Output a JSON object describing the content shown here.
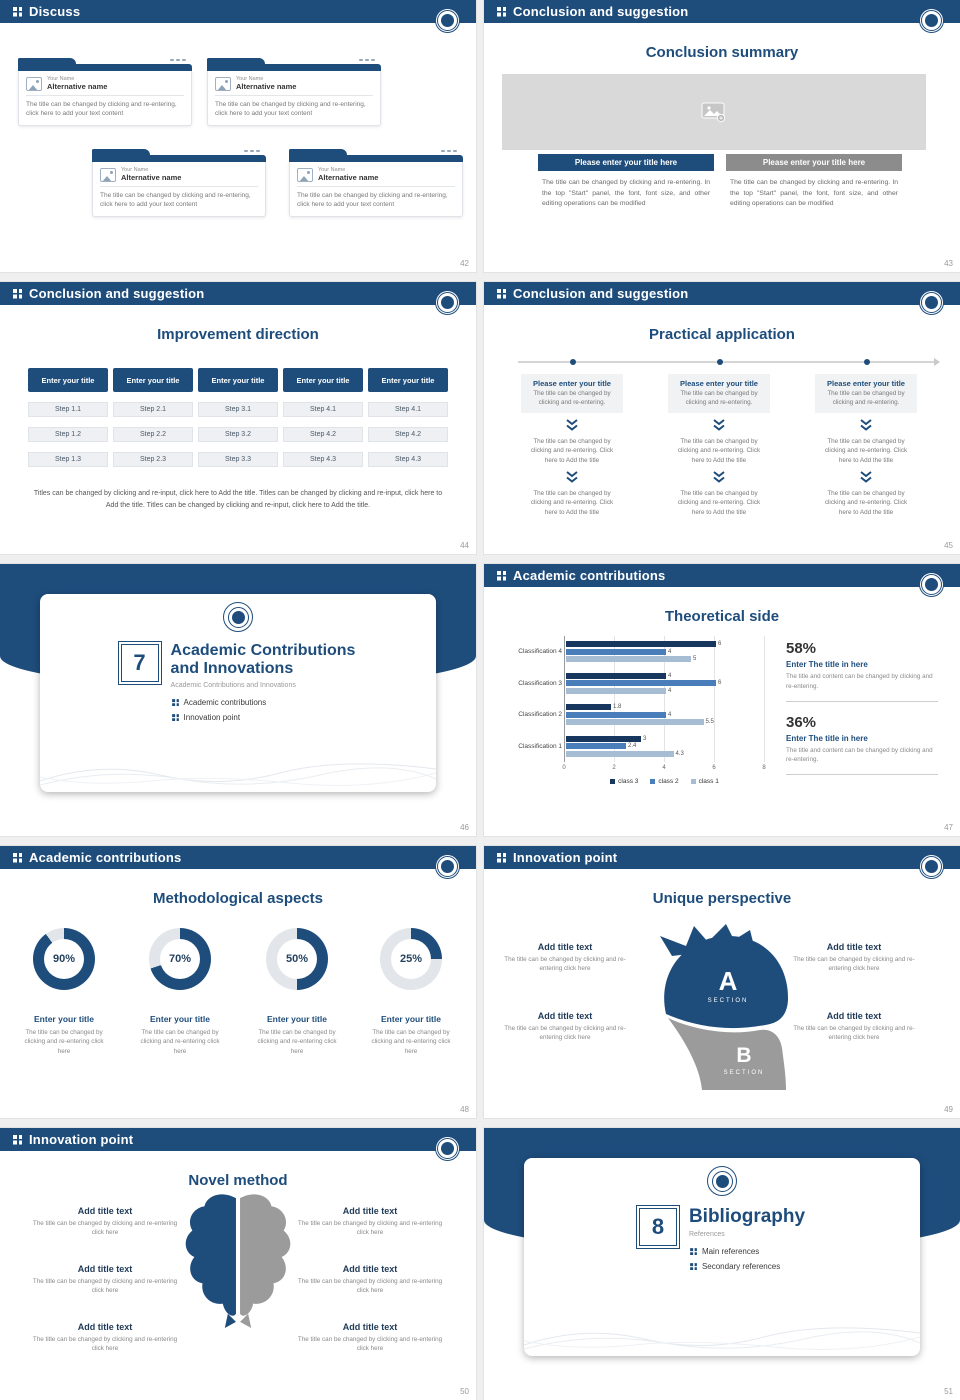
{
  "theme": {
    "accent": "#1e4d7c",
    "accent_dark": "#17375e",
    "mid_blue": "#4a7ebb",
    "light_blue": "#a6bdd4",
    "donut_track": "#e2e6ea",
    "placeholder_gray": "#d9d9d9",
    "button_gray": "#8c8c8c"
  },
  "slide42": {
    "header": "Discuss",
    "page": "42",
    "card": {
      "name_label": "Your Name",
      "alt_name": "Alternative name",
      "body": "The title can be changed by clicking and re-entering, click here to add your text content"
    }
  },
  "slide43": {
    "header": "Conclusion and suggestion",
    "page": "43",
    "title": "Conclusion summary",
    "button_left": "Please enter your title here",
    "button_right": "Please enter your title here",
    "body_left": "The title can be changed by clicking and re-entering. In the top \"Start\" panel, the font, font size, and other editing operations can be modified",
    "body_right": "The title can be changed by clicking and re-entering. In the top \"Start\" panel, the font, font size, and other editing operations can be modified"
  },
  "slide44": {
    "header": "Conclusion and suggestion",
    "page": "44",
    "title": "Improvement direction",
    "column_header": "Enter your title",
    "columns": [
      [
        "Step 1.1",
        "Step 1.2",
        "Step 1.3"
      ],
      [
        "Step 2.1",
        "Step 2.2",
        "Step 2.3"
      ],
      [
        "Step 3.1",
        "Step 3.2",
        "Step 3.3"
      ],
      [
        "Step 4.1",
        "Step 4.2",
        "Step 4.3"
      ],
      [
        "Step 4.1",
        "Step 4.2",
        "Step 4.3"
      ]
    ],
    "footer": "Titles can be changed by clicking and re-input, click here to Add the title. Titles can be changed by clicking and re-input, click here to Add the title. Titles can be changed by clicking and re-input, click here to Add the title."
  },
  "slide45": {
    "header": "Conclusion and suggestion",
    "page": "45",
    "title": "Practical application",
    "box_title": "Please enter your title",
    "box_body": "The title can be changed by clicking and re-entering.",
    "step_text": "The title can be changed by clicking and re-entering. Click here to Add the title"
  },
  "slide46": {
    "page": "46",
    "number": "7",
    "title_line1": "Academic Contributions",
    "title_line2": "and Innovations",
    "subtitle": "Academic Contributions and Innovations",
    "bullet1": "Academic contributions",
    "bullet2": "Innovation point"
  },
  "slide47": {
    "header": "Academic contributions",
    "page": "47",
    "title": "Theoretical side",
    "chart_data": {
      "type": "bar",
      "orientation": "horizontal",
      "categories": [
        "Classification 1",
        "Classification 2",
        "Classification 3",
        "Classification 4"
      ],
      "series": [
        {
          "name": "class 3",
          "color": "#17375e",
          "values": [
            3,
            1.8,
            4,
            6
          ]
        },
        {
          "name": "class 2",
          "color": "#4a7ebb",
          "values": [
            2.4,
            4,
            6,
            4
          ]
        },
        {
          "name": "class 1",
          "color": "#a6bdd4",
          "values": [
            4.3,
            5.5,
            4,
            5
          ]
        }
      ],
      "xlim": [
        0,
        8
      ],
      "xticks": [
        0,
        2,
        4,
        6,
        8
      ],
      "legend_position": "bottom"
    },
    "stat1": {
      "pct": "58%",
      "title": "Enter The title in here",
      "body": "The title and content can be changed by clicking and re-entering."
    },
    "stat2": {
      "pct": "36%",
      "title": "Enter The title in here",
      "body": "The title and content can be changed by clicking and re-entering."
    }
  },
  "slide48": {
    "header": "Academic contributions",
    "page": "48",
    "title": "Methodological aspects",
    "item_title": "Enter your title",
    "item_body": "The title can be changed by clicking and re-entering click here",
    "donuts": [
      {
        "pct": 90,
        "label": "90%"
      },
      {
        "pct": 70,
        "label": "70%"
      },
      {
        "pct": 50,
        "label": "50%"
      },
      {
        "pct": 25,
        "label": "25%"
      }
    ]
  },
  "slide49": {
    "header": "Innovation point",
    "page": "49",
    "title": "Unique perspective",
    "item_title": "Add title text",
    "item_body": "The title can be changed by clicking and re-entering click here",
    "section_a_letter": "A",
    "section_a_label": "SECTION",
    "section_b_letter": "B",
    "section_b_label": "SECTION"
  },
  "slide50": {
    "header": "Innovation point",
    "page": "50",
    "title": "Novel method",
    "item_title": "Add title text",
    "item_body": "The title can be changed by clicking and re-entering click here"
  },
  "slide51": {
    "page": "51",
    "number": "8",
    "title": "Bibliography",
    "subtitle": "References",
    "bullet1": "Main references",
    "bullet2": "Secondary references"
  }
}
